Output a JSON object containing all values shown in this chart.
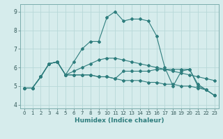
{
  "title": "",
  "xlabel": "Humidex (Indice chaleur)",
  "ylabel": "",
  "xlim": [
    -0.5,
    23.5
  ],
  "ylim": [
    3.8,
    9.4
  ],
  "yticks": [
    4,
    5,
    6,
    7,
    8,
    9
  ],
  "xticks": [
    0,
    1,
    2,
    3,
    4,
    5,
    6,
    7,
    8,
    9,
    10,
    11,
    12,
    13,
    14,
    15,
    16,
    17,
    18,
    19,
    20,
    21,
    22,
    23
  ],
  "background_color": "#d6ecec",
  "grid_color": "#b8d8d8",
  "line_color": "#2e7d7d",
  "lines": [
    {
      "x": [
        0,
        1,
        2,
        3,
        4,
        5,
        6,
        7,
        8,
        9,
        10,
        11,
        12,
        13,
        14,
        15,
        16,
        17,
        18,
        19,
        20,
        21,
        22,
        23
      ],
      "y": [
        4.9,
        4.9,
        5.5,
        6.2,
        6.3,
        5.6,
        6.3,
        7.0,
        7.4,
        7.4,
        8.7,
        9.0,
        8.5,
        8.6,
        8.6,
        8.5,
        7.7,
        6.0,
        5.0,
        5.8,
        5.9,
        5.1,
        4.8,
        4.5
      ]
    },
    {
      "x": [
        0,
        1,
        2,
        3,
        4,
        5,
        6,
        7,
        8,
        9,
        10,
        11,
        12,
        13,
        14,
        15,
        16,
        17,
        18,
        19,
        20,
        21,
        22,
        23
      ],
      "y": [
        4.9,
        4.9,
        5.5,
        6.2,
        6.3,
        5.6,
        5.6,
        5.6,
        5.6,
        5.5,
        5.5,
        5.4,
        5.3,
        5.3,
        5.3,
        5.2,
        5.2,
        5.1,
        5.1,
        5.0,
        5.0,
        4.9,
        4.8,
        4.5
      ]
    },
    {
      "x": [
        0,
        1,
        2,
        3,
        4,
        5,
        6,
        7,
        8,
        9,
        10,
        11,
        12,
        13,
        14,
        15,
        16,
        17,
        18,
        19,
        20,
        21,
        22,
        23
      ],
      "y": [
        4.9,
        4.9,
        5.5,
        6.2,
        6.3,
        5.6,
        5.6,
        5.6,
        5.6,
        5.5,
        5.5,
        5.4,
        5.8,
        5.8,
        5.8,
        5.8,
        5.9,
        5.9,
        5.9,
        5.9,
        5.9,
        5.0,
        4.8,
        4.5
      ]
    },
    {
      "x": [
        0,
        1,
        2,
        3,
        4,
        5,
        6,
        7,
        8,
        9,
        10,
        11,
        12,
        13,
        14,
        15,
        16,
        17,
        18,
        19,
        20,
        21,
        22,
        23
      ],
      "y": [
        4.9,
        4.9,
        5.5,
        6.2,
        6.3,
        5.6,
        5.8,
        6.0,
        6.2,
        6.4,
        6.5,
        6.5,
        6.4,
        6.3,
        6.2,
        6.1,
        6.0,
        5.9,
        5.8,
        5.7,
        5.6,
        5.5,
        5.4,
        5.3
      ]
    }
  ]
}
